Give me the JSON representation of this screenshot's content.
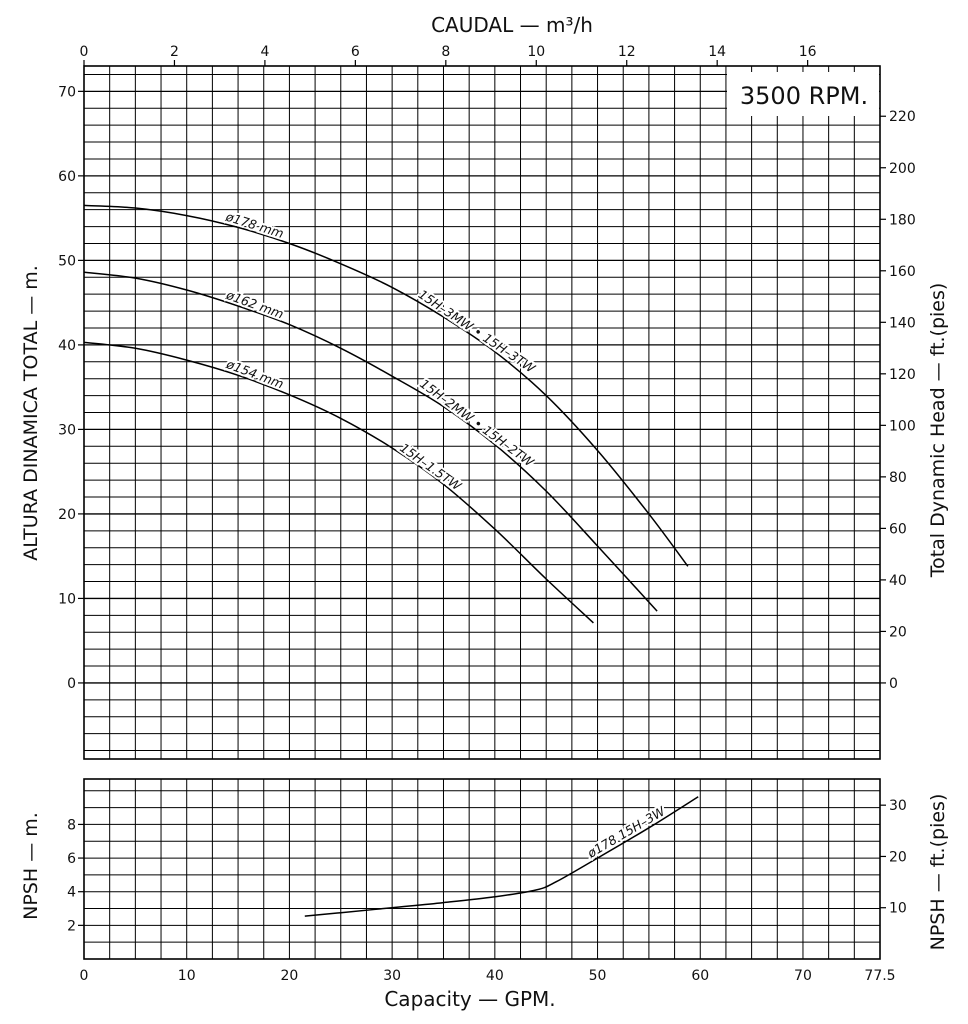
{
  "chart_data": [
    {
      "type": "line",
      "panel": "head",
      "title": "",
      "rpm_label": "3500 RPM.",
      "x_top_label": "CAUDAL  —  m³/h",
      "x_top_ticks": [
        "0",
        "2",
        "4",
        "6",
        "8",
        "10",
        "12",
        "14",
        "16"
      ],
      "x_top_range_m3h": [
        0,
        17.6
      ],
      "x_bottom_label": "Capacity — GPM.",
      "x_bottom_ticks": [
        "0",
        "10",
        "20",
        "30",
        "40",
        "50",
        "60",
        "70",
        "77.5"
      ],
      "xlim_gpm": [
        0,
        77.5
      ],
      "ylabel_left": "ALTURA DINAMICA TOTAL — m.",
      "ylabel_right": "Total Dynamic Head — ft.(pies)",
      "y_left_ticks": [
        "0",
        "10",
        "20",
        "30",
        "40",
        "50",
        "60",
        "70"
      ],
      "y_right_ticks": [
        "0",
        "20",
        "40",
        "60",
        "80",
        "100",
        "120",
        "140",
        "160",
        "180",
        "200",
        "220"
      ],
      "ylim_m": [
        -9,
        73
      ],
      "grid": true,
      "series": [
        {
          "name": "ø178 mm",
          "model_label": "15H–3MW • 15H–3TW",
          "x": [
            0,
            5,
            10,
            15,
            20,
            25,
            30,
            35,
            40,
            45,
            50,
            55,
            58.8
          ],
          "y": [
            56.5,
            56.2,
            55.3,
            53.9,
            52.0,
            49.6,
            46.8,
            43.3,
            39.2,
            34.0,
            27.5,
            20.0,
            13.8
          ]
        },
        {
          "name": "ø162 mm",
          "model_label": "15H–2MW • 15H–2TW",
          "x": [
            0,
            5,
            10,
            15,
            20,
            25,
            30,
            35,
            40,
            45,
            50,
            55.8
          ],
          "y": [
            48.6,
            47.9,
            46.5,
            44.6,
            42.4,
            39.6,
            36.3,
            32.7,
            28.2,
            22.7,
            16.2,
            8.5
          ]
        },
        {
          "name": "ø154 mm",
          "model_label": "15H–1.5TW",
          "x": [
            0,
            5,
            10,
            15,
            20,
            25,
            30,
            35,
            40,
            45,
            49.6
          ],
          "y": [
            40.3,
            39.6,
            38.2,
            36.4,
            34.1,
            31.3,
            27.8,
            23.5,
            18.2,
            12.3,
            7.1
          ]
        }
      ]
    },
    {
      "type": "line",
      "panel": "npsh",
      "ylabel_left": "NPSH — m.",
      "ylabel_right": "NPSH — ft.(pies)",
      "y_left_ticks": [
        "2",
        "4",
        "6",
        "8"
      ],
      "y_right_ticks": [
        "10",
        "20",
        "30"
      ],
      "ylim_m": [
        0,
        10.7
      ],
      "xlim_gpm": [
        0,
        77.5
      ],
      "grid": true,
      "series": [
        {
          "name": "ø178 15H–3W",
          "x": [
            21.5,
            25,
            30,
            35,
            40,
            44,
            46,
            50,
            55,
            59.8
          ],
          "y": [
            2.55,
            2.75,
            3.05,
            3.35,
            3.7,
            4.1,
            4.6,
            6.0,
            7.8,
            9.65
          ]
        }
      ]
    }
  ]
}
